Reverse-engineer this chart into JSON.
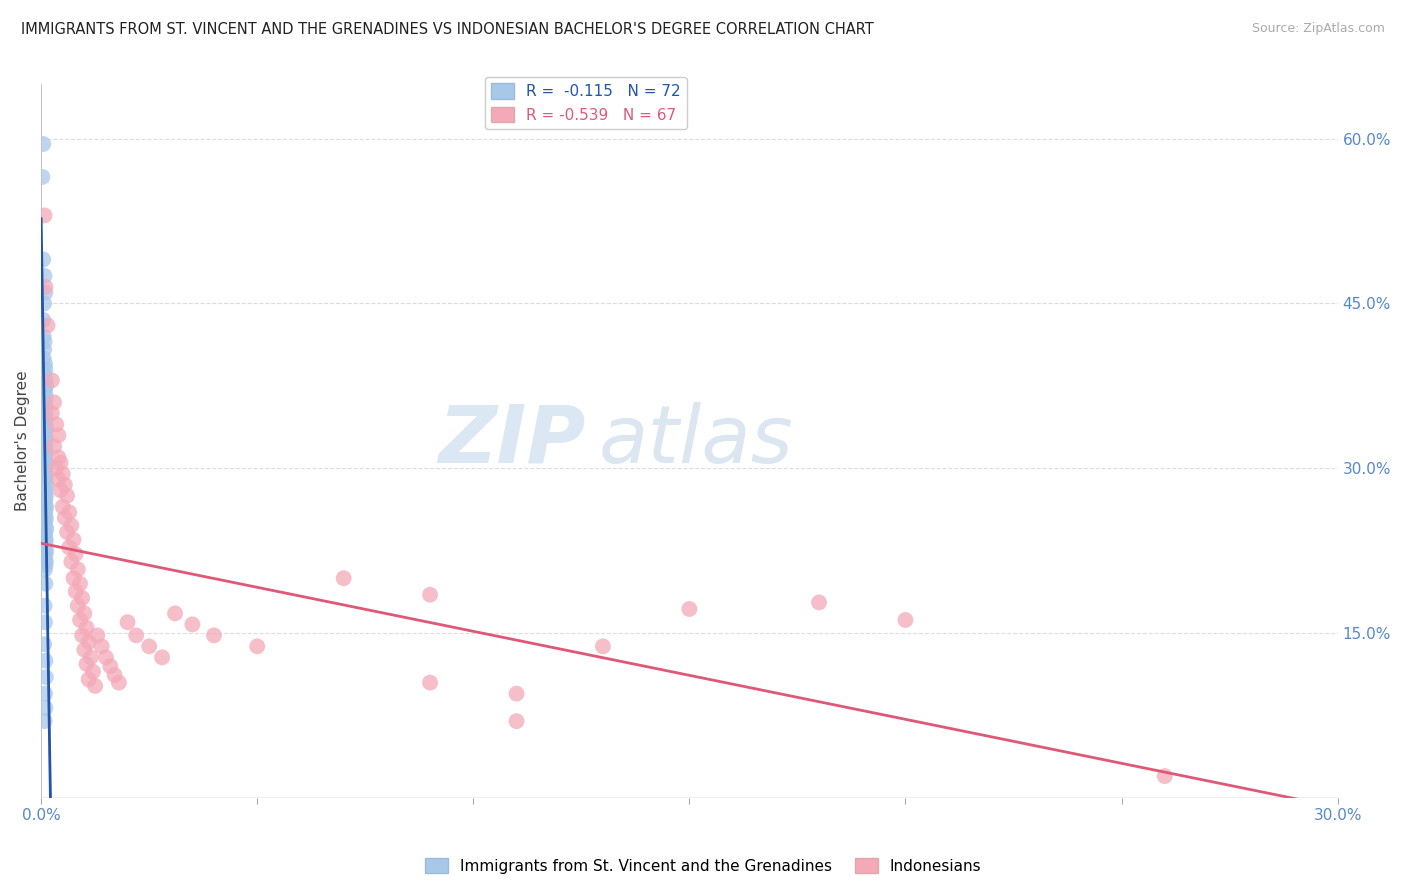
{
  "title": "IMMIGRANTS FROM ST. VINCENT AND THE GRENADINES VS INDONESIAN BACHELOR'S DEGREE CORRELATION CHART",
  "source": "Source: ZipAtlas.com",
  "ylabel": "Bachelor's Degree",
  "ylabel_right_ticks": [
    "60.0%",
    "45.0%",
    "30.0%",
    "15.0%"
  ],
  "ylabel_right_vals": [
    0.6,
    0.45,
    0.3,
    0.15
  ],
  "xmin": 0.0,
  "xmax": 0.3,
  "ymin": 0.0,
  "ymax": 0.65,
  "legend_blue_r": "-0.115",
  "legend_blue_n": "72",
  "legend_pink_r": "-0.539",
  "legend_pink_n": "67",
  "legend_label_blue": "Immigrants from St. Vincent and the Grenadines",
  "legend_label_pink": "Indonesians",
  "watermark_zip": "ZIP",
  "watermark_atlas": "atlas",
  "blue_color": "#a8c8e8",
  "pink_color": "#f4a8b8",
  "blue_line_color": "#2255aa",
  "blue_dash_color": "#88aad0",
  "pink_line_color": "#e05878",
  "background_color": "#ffffff",
  "grid_color": "#dddddd",
  "axis_color": "#aaaaaa",
  "blue_scatter": [
    [
      0.0005,
      0.595
    ],
    [
      0.0003,
      0.565
    ],
    [
      0.0005,
      0.49
    ],
    [
      0.0008,
      0.475
    ],
    [
      0.001,
      0.46
    ],
    [
      0.0007,
      0.45
    ],
    [
      0.0005,
      0.435
    ],
    [
      0.0006,
      0.42
    ],
    [
      0.0008,
      0.415
    ],
    [
      0.0007,
      0.408
    ],
    [
      0.0006,
      0.4
    ],
    [
      0.0009,
      0.395
    ],
    [
      0.001,
      0.39
    ],
    [
      0.0008,
      0.385
    ],
    [
      0.001,
      0.38
    ],
    [
      0.0012,
      0.375
    ],
    [
      0.0009,
      0.37
    ],
    [
      0.0011,
      0.365
    ],
    [
      0.001,
      0.36
    ],
    [
      0.0009,
      0.355
    ],
    [
      0.0011,
      0.35
    ],
    [
      0.001,
      0.345
    ],
    [
      0.0008,
      0.34
    ],
    [
      0.0012,
      0.338
    ],
    [
      0.001,
      0.335
    ],
    [
      0.0009,
      0.332
    ],
    [
      0.0011,
      0.328
    ],
    [
      0.0008,
      0.325
    ],
    [
      0.001,
      0.322
    ],
    [
      0.0009,
      0.318
    ],
    [
      0.0011,
      0.315
    ],
    [
      0.001,
      0.312
    ],
    [
      0.0008,
      0.308
    ],
    [
      0.0012,
      0.305
    ],
    [
      0.001,
      0.3
    ],
    [
      0.0009,
      0.298
    ],
    [
      0.0011,
      0.295
    ],
    [
      0.001,
      0.292
    ],
    [
      0.0008,
      0.288
    ],
    [
      0.0012,
      0.285
    ],
    [
      0.001,
      0.282
    ],
    [
      0.0009,
      0.278
    ],
    [
      0.0011,
      0.275
    ],
    [
      0.001,
      0.272
    ],
    [
      0.0008,
      0.268
    ],
    [
      0.0012,
      0.265
    ],
    [
      0.001,
      0.262
    ],
    [
      0.0009,
      0.258
    ],
    [
      0.0011,
      0.255
    ],
    [
      0.001,
      0.252
    ],
    [
      0.0008,
      0.248
    ],
    [
      0.0012,
      0.245
    ],
    [
      0.001,
      0.242
    ],
    [
      0.0009,
      0.238
    ],
    [
      0.0011,
      0.235
    ],
    [
      0.001,
      0.232
    ],
    [
      0.0008,
      0.228
    ],
    [
      0.0012,
      0.225
    ],
    [
      0.001,
      0.222
    ],
    [
      0.0009,
      0.218
    ],
    [
      0.0011,
      0.215
    ],
    [
      0.001,
      0.212
    ],
    [
      0.0009,
      0.208
    ],
    [
      0.001,
      0.195
    ],
    [
      0.0008,
      0.175
    ],
    [
      0.0009,
      0.16
    ],
    [
      0.0007,
      0.14
    ],
    [
      0.001,
      0.125
    ],
    [
      0.0011,
      0.11
    ],
    [
      0.0009,
      0.095
    ],
    [
      0.001,
      0.082
    ],
    [
      0.0008,
      0.07
    ]
  ],
  "pink_scatter": [
    [
      0.0008,
      0.53
    ],
    [
      0.001,
      0.465
    ],
    [
      0.0015,
      0.43
    ],
    [
      0.0025,
      0.38
    ],
    [
      0.003,
      0.36
    ],
    [
      0.0025,
      0.35
    ],
    [
      0.0035,
      0.34
    ],
    [
      0.004,
      0.33
    ],
    [
      0.003,
      0.32
    ],
    [
      0.004,
      0.31
    ],
    [
      0.0045,
      0.305
    ],
    [
      0.0035,
      0.3
    ],
    [
      0.005,
      0.295
    ],
    [
      0.004,
      0.29
    ],
    [
      0.0055,
      0.285
    ],
    [
      0.0045,
      0.28
    ],
    [
      0.006,
      0.275
    ],
    [
      0.005,
      0.265
    ],
    [
      0.0065,
      0.26
    ],
    [
      0.0055,
      0.255
    ],
    [
      0.007,
      0.248
    ],
    [
      0.006,
      0.242
    ],
    [
      0.0075,
      0.235
    ],
    [
      0.0065,
      0.228
    ],
    [
      0.008,
      0.222
    ],
    [
      0.007,
      0.215
    ],
    [
      0.0085,
      0.208
    ],
    [
      0.0075,
      0.2
    ],
    [
      0.009,
      0.195
    ],
    [
      0.008,
      0.188
    ],
    [
      0.0095,
      0.182
    ],
    [
      0.0085,
      0.175
    ],
    [
      0.01,
      0.168
    ],
    [
      0.009,
      0.162
    ],
    [
      0.0105,
      0.155
    ],
    [
      0.0095,
      0.148
    ],
    [
      0.011,
      0.142
    ],
    [
      0.01,
      0.135
    ],
    [
      0.0115,
      0.128
    ],
    [
      0.0105,
      0.122
    ],
    [
      0.012,
      0.115
    ],
    [
      0.011,
      0.108
    ],
    [
      0.0125,
      0.102
    ],
    [
      0.013,
      0.148
    ],
    [
      0.014,
      0.138
    ],
    [
      0.015,
      0.128
    ],
    [
      0.016,
      0.12
    ],
    [
      0.017,
      0.112
    ],
    [
      0.018,
      0.105
    ],
    [
      0.02,
      0.16
    ],
    [
      0.022,
      0.148
    ],
    [
      0.025,
      0.138
    ],
    [
      0.028,
      0.128
    ],
    [
      0.031,
      0.168
    ],
    [
      0.035,
      0.158
    ],
    [
      0.04,
      0.148
    ],
    [
      0.05,
      0.138
    ],
    [
      0.07,
      0.2
    ],
    [
      0.09,
      0.185
    ],
    [
      0.11,
      0.07
    ],
    [
      0.13,
      0.138
    ],
    [
      0.15,
      0.172
    ],
    [
      0.18,
      0.178
    ],
    [
      0.2,
      0.162
    ],
    [
      0.26,
      0.02
    ],
    [
      0.11,
      0.095
    ],
    [
      0.09,
      0.105
    ]
  ]
}
